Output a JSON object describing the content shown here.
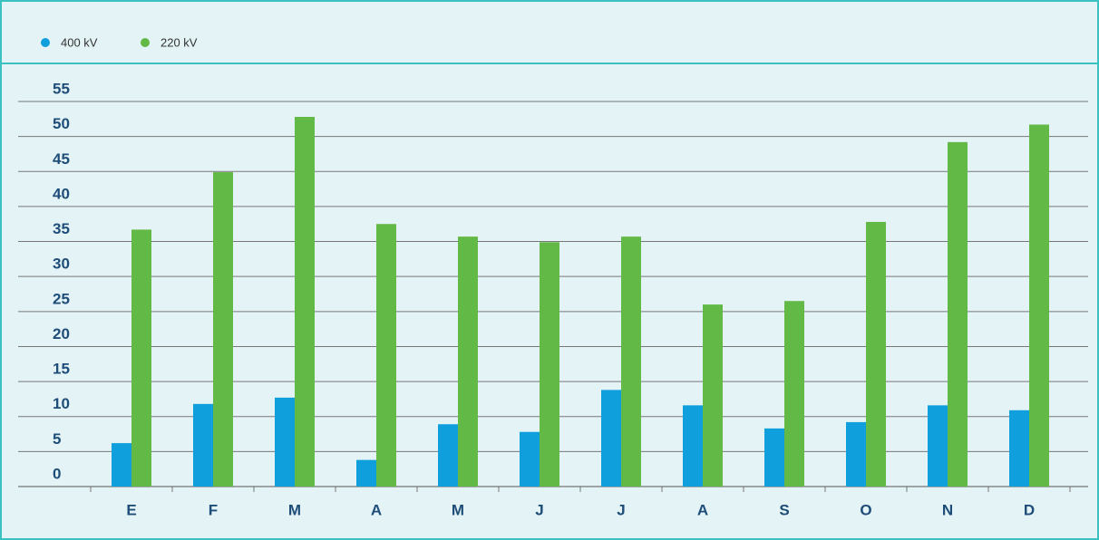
{
  "chart_data": {
    "type": "bar",
    "categories": [
      "E",
      "F",
      "M",
      "A",
      "M",
      "J",
      "J",
      "A",
      "S",
      "O",
      "N",
      "D"
    ],
    "series": [
      {
        "name": "400 kV",
        "color": "#0f9fdc",
        "values": [
          6.2,
          11.8,
          12.7,
          3.8,
          8.9,
          7.8,
          13.8,
          11.6,
          8.3,
          9.2,
          11.6,
          10.9
        ]
      },
      {
        "name": "220 kV",
        "color": "#62b946",
        "values": [
          36.7,
          44.9,
          52.8,
          37.5,
          35.7,
          34.9,
          35.7,
          26.0,
          26.5,
          37.8,
          49.2,
          51.7
        ]
      }
    ],
    "ylim": [
      0,
      55
    ],
    "yticks": [
      0,
      5,
      10,
      15,
      20,
      25,
      30,
      35,
      40,
      45,
      50,
      55
    ],
    "grid": true,
    "legend": "top-left"
  }
}
